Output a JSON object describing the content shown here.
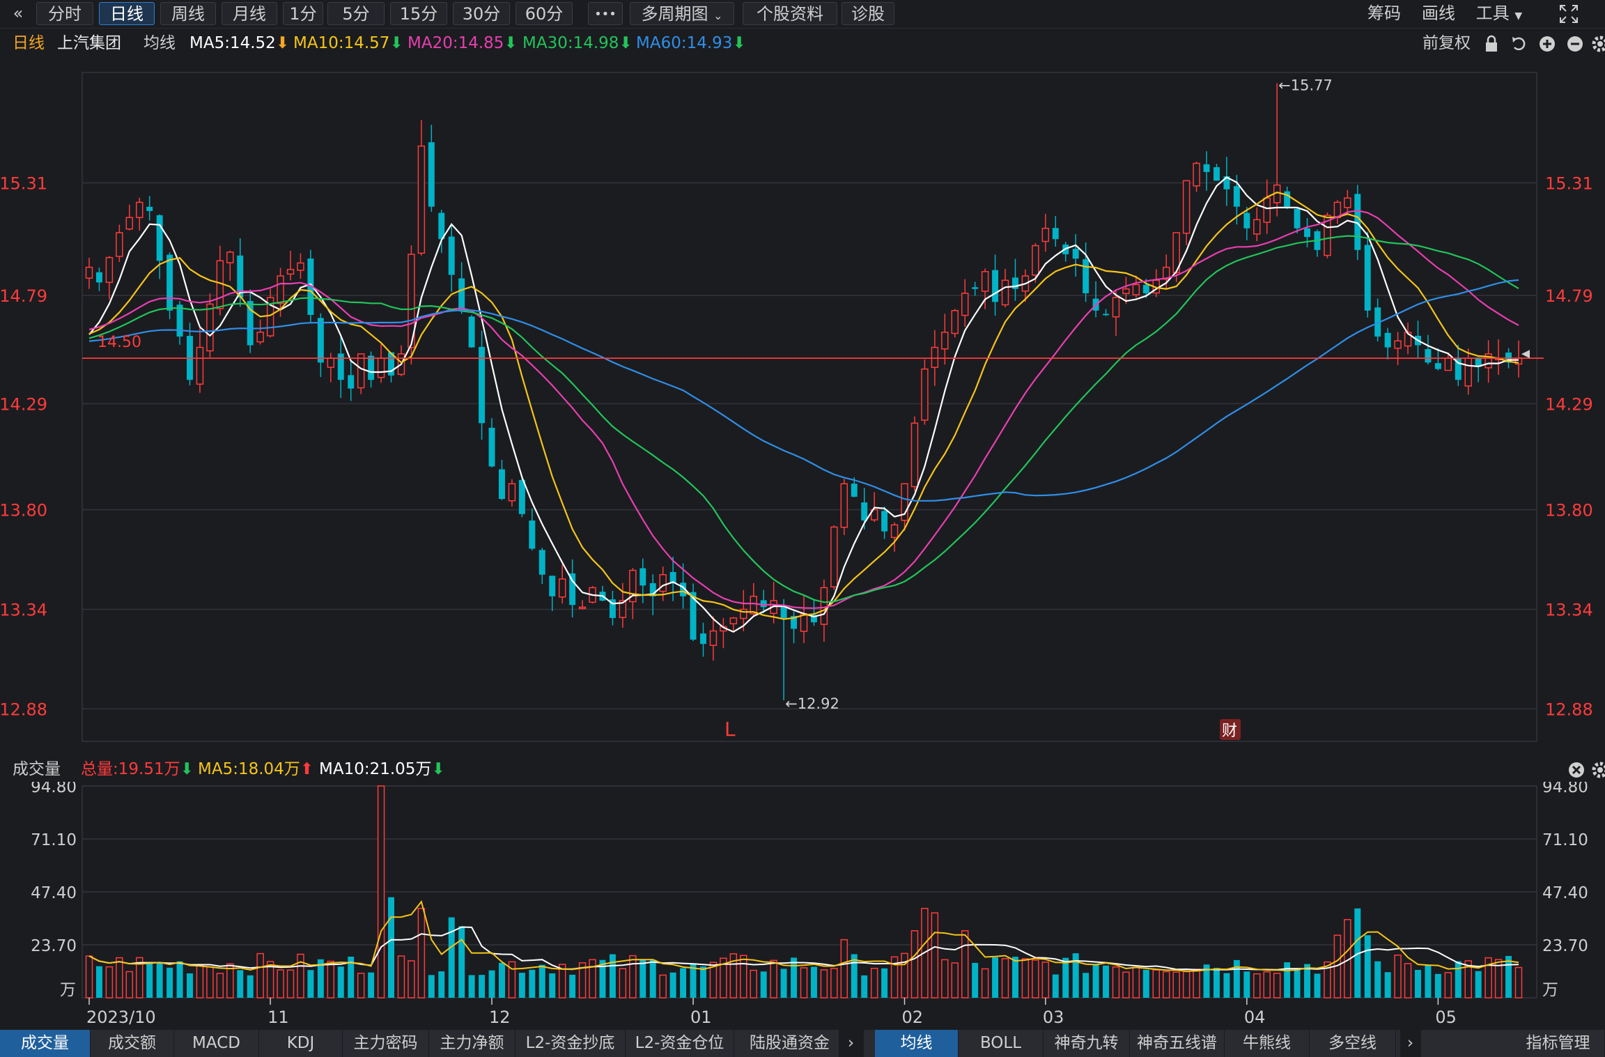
{
  "toolbar": {
    "back_glyph": "«",
    "periods": [
      "分时",
      "日线",
      "周线",
      "月线",
      "1分",
      "5分",
      "15分",
      "30分",
      "60分"
    ],
    "active_period": 1,
    "more_glyph": "•••",
    "multi_period": "多周期图",
    "stock_info": "个股资料",
    "diagnose": "诊股",
    "right": {
      "chips": "筹码",
      "draw": "画线",
      "tools": "工具"
    }
  },
  "infobar": {
    "period": "日线",
    "stock_name": "上汽集团",
    "ma_label": "均线",
    "ma5": "MA5:14.52",
    "ma10": "MA10:14.57",
    "ma20": "MA20:14.85",
    "ma30": "MA30:14.98",
    "ma60": "MA60:14.93",
    "adjust": "前复权"
  },
  "colors": {
    "up": "#ff3b3b",
    "down": "#00b3c7",
    "ma5": "#ffffff",
    "ma10": "#f5c518",
    "ma20": "#e83fb0",
    "ma30": "#22c45a",
    "ma60": "#2f8fe8",
    "bg": "#1b1c20",
    "grid": "#33343b"
  },
  "chart_data": {
    "type": "candlestick",
    "price_axis": {
      "ticks": [
        "15.31",
        "14.79",
        "14.29",
        "13.80",
        "13.34",
        "12.88"
      ],
      "min": 12.73,
      "max": 15.82
    },
    "current_price_line": {
      "value": 14.5,
      "label": "14.50"
    },
    "annotations": {
      "high_label": "←15.77",
      "low_label": "←12.92",
      "high": 15.77,
      "low": 12.92
    },
    "markers": {
      "L": "L",
      "cai": "财"
    },
    "x_axis_labels": [
      {
        "label": "2023/10",
        "index": 0
      },
      {
        "label": "11",
        "index": 18
      },
      {
        "label": "12",
        "index": 40
      },
      {
        "label": "01",
        "index": 60
      },
      {
        "label": "02",
        "index": 81
      },
      {
        "label": "03",
        "index": 95
      },
      {
        "label": "04",
        "index": 115
      },
      {
        "label": "05",
        "index": 134
      }
    ],
    "n_bars": 143,
    "anchors": [
      [
        0,
        14.92
      ],
      [
        1,
        14.85
      ],
      [
        3,
        15.08
      ],
      [
        5,
        15.22
      ],
      [
        6,
        15.18
      ],
      [
        8,
        14.72
      ],
      [
        9,
        14.6
      ],
      [
        10,
        14.4
      ],
      [
        11,
        14.55
      ],
      [
        13,
        14.95
      ],
      [
        14,
        14.99
      ],
      [
        15,
        14.78
      ],
      [
        16,
        14.56
      ],
      [
        17,
        14.62
      ],
      [
        18,
        14.78
      ],
      [
        19,
        14.88
      ],
      [
        21,
        14.94
      ],
      [
        22,
        14.7
      ],
      [
        23,
        14.48
      ],
      [
        24,
        14.5
      ],
      [
        25,
        14.4
      ],
      [
        26,
        14.36
      ],
      [
        27,
        14.52
      ],
      [
        28,
        14.4
      ],
      [
        29,
        14.5
      ],
      [
        30,
        14.42
      ],
      [
        31,
        14.52
      ],
      [
        32,
        14.98
      ],
      [
        33,
        15.48
      ],
      [
        34,
        15.2
      ],
      [
        35,
        15.05
      ],
      [
        37,
        14.72
      ],
      [
        38,
        14.55
      ],
      [
        39,
        14.2
      ],
      [
        40,
        14.0
      ],
      [
        41,
        13.85
      ],
      [
        42,
        13.92
      ],
      [
        43,
        13.78
      ],
      [
        44,
        13.62
      ],
      [
        45,
        13.5
      ],
      [
        46,
        13.4
      ],
      [
        47,
        13.48
      ],
      [
        48,
        13.36
      ],
      [
        49,
        13.35
      ],
      [
        50,
        13.44
      ],
      [
        51,
        13.38
      ],
      [
        52,
        13.3
      ],
      [
        53,
        13.38
      ],
      [
        54,
        13.52
      ],
      [
        55,
        13.45
      ],
      [
        56,
        13.4
      ],
      [
        57,
        13.5
      ],
      [
        58,
        13.46
      ],
      [
        59,
        13.4
      ],
      [
        60,
        13.2
      ],
      [
        61,
        13.18
      ],
      [
        62,
        13.24
      ],
      [
        63,
        13.26
      ],
      [
        64,
        13.3
      ],
      [
        65,
        13.34
      ],
      [
        66,
        13.4
      ],
      [
        67,
        13.35
      ],
      [
        68,
        13.38
      ],
      [
        69,
        13.3
      ],
      [
        70,
        13.25
      ],
      [
        71,
        13.32
      ],
      [
        72,
        13.28
      ],
      [
        73,
        13.44
      ],
      [
        74,
        13.72
      ],
      [
        75,
        13.92
      ],
      [
        76,
        13.86
      ],
      [
        77,
        13.75
      ],
      [
        78,
        13.8
      ],
      [
        79,
        13.7
      ],
      [
        80,
        13.73
      ],
      [
        81,
        13.92
      ],
      [
        82,
        14.2
      ],
      [
        83,
        14.45
      ],
      [
        84,
        14.55
      ],
      [
        85,
        14.62
      ],
      [
        86,
        14.72
      ],
      [
        87,
        14.8
      ],
      [
        88,
        14.82
      ],
      [
        89,
        14.9
      ],
      [
        90,
        14.76
      ],
      [
        91,
        14.86
      ],
      [
        92,
        14.82
      ],
      [
        93,
        14.88
      ],
      [
        94,
        15.02
      ],
      [
        95,
        15.1
      ],
      [
        96,
        15.05
      ],
      [
        97,
        14.98
      ],
      [
        98,
        14.96
      ],
      [
        99,
        14.8
      ],
      [
        100,
        14.72
      ],
      [
        101,
        14.7
      ],
      [
        102,
        14.78
      ],
      [
        103,
        14.82
      ],
      [
        104,
        14.84
      ],
      [
        105,
        14.8
      ],
      [
        106,
        14.86
      ],
      [
        107,
        14.92
      ],
      [
        108,
        15.08
      ],
      [
        109,
        15.32
      ],
      [
        110,
        15.4
      ],
      [
        111,
        15.36
      ],
      [
        112,
        15.32
      ],
      [
        113,
        15.28
      ],
      [
        114,
        15.2
      ],
      [
        115,
        15.1
      ],
      [
        116,
        15.14
      ],
      [
        117,
        15.24
      ],
      [
        118,
        15.3
      ],
      [
        119,
        15.2
      ],
      [
        120,
        15.1
      ],
      [
        121,
        15.06
      ],
      [
        122,
        15.0
      ],
      [
        123,
        15.16
      ],
      [
        124,
        15.22
      ],
      [
        125,
        15.24
      ],
      [
        126,
        15.0
      ],
      [
        127,
        14.72
      ],
      [
        128,
        14.6
      ],
      [
        129,
        14.55
      ],
      [
        130,
        14.58
      ],
      [
        131,
        14.62
      ],
      [
        132,
        14.56
      ],
      [
        133,
        14.48
      ],
      [
        134,
        14.45
      ],
      [
        135,
        14.5
      ],
      [
        136,
        14.4
      ],
      [
        137,
        14.5
      ],
      [
        138,
        14.46
      ],
      [
        139,
        14.52
      ],
      [
        140,
        14.5
      ],
      [
        141,
        14.48
      ],
      [
        142,
        14.5
      ]
    ],
    "volume_axis": {
      "ticks": [
        "94.80",
        "71.10",
        "47.40",
        "23.70"
      ],
      "unit": "万",
      "max": 94.8
    },
    "volume_info": {
      "label": "成交量",
      "total": "总量:19.51万",
      "ma5": "MA5:18.04万",
      "ma10": "MA10:21.05万"
    },
    "volume_spikes": [
      [
        29,
        94.8
      ],
      [
        30,
        45
      ],
      [
        33,
        40
      ],
      [
        36,
        36
      ],
      [
        37,
        32
      ],
      [
        55,
        17
      ],
      [
        61,
        14
      ],
      [
        75,
        26
      ],
      [
        82,
        30
      ],
      [
        83,
        40
      ],
      [
        84,
        38
      ],
      [
        87,
        30
      ],
      [
        124,
        28
      ],
      [
        125,
        35
      ],
      [
        126,
        40
      ],
      [
        127,
        28
      ]
    ]
  },
  "bottom_tabs": {
    "left": [
      "成交量",
      "成交额",
      "MACD",
      "KDJ",
      "主力密码",
      "主力净额",
      "L2-资金抄底",
      "L2-资金仓位",
      "陆股通资金"
    ],
    "right": [
      "均线",
      "BOLL",
      "神奇九转",
      "神奇五线谱",
      "牛熊线",
      "多空线"
    ],
    "manage": "指标管理"
  }
}
